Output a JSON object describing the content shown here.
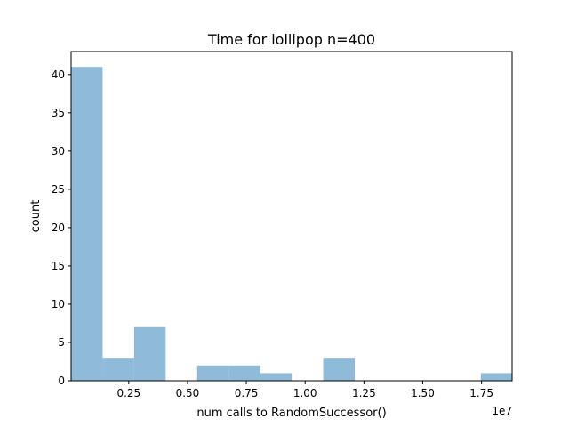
{
  "chart_data": {
    "type": "bar",
    "title": "Time for lollipop n=400",
    "xlabel": "num calls to RandomSuccessor()",
    "ylabel": "count",
    "x_offset_label": "1e7",
    "x_scale": 10000000,
    "xlim": [
      50000,
      18800000
    ],
    "ylim": [
      0,
      43
    ],
    "grid": false,
    "bar_color": "#8fbbd9",
    "bins": [
      {
        "x0": 50000,
        "x1": 1390000,
        "count": 41
      },
      {
        "x0": 1390000,
        "x1": 2730000,
        "count": 3
      },
      {
        "x0": 2730000,
        "x1": 4070000,
        "count": 7
      },
      {
        "x0": 4070000,
        "x1": 5410000,
        "count": 0
      },
      {
        "x0": 5410000,
        "x1": 6750000,
        "count": 2
      },
      {
        "x0": 6750000,
        "x1": 8090000,
        "count": 2
      },
      {
        "x0": 8090000,
        "x1": 9430000,
        "count": 1
      },
      {
        "x0": 9430000,
        "x1": 10770000,
        "count": 0
      },
      {
        "x0": 10770000,
        "x1": 12110000,
        "count": 3
      },
      {
        "x0": 12110000,
        "x1": 13450000,
        "count": 0
      },
      {
        "x0": 13450000,
        "x1": 14790000,
        "count": 0
      },
      {
        "x0": 14790000,
        "x1": 16130000,
        "count": 0
      },
      {
        "x0": 16130000,
        "x1": 17470000,
        "count": 0
      },
      {
        "x0": 17470000,
        "x1": 18810000,
        "count": 1
      }
    ],
    "x_ticks": [
      {
        "value": 2500000,
        "label": "0.25"
      },
      {
        "value": 5000000,
        "label": "0.50"
      },
      {
        "value": 7500000,
        "label": "0.75"
      },
      {
        "value": 10000000,
        "label": "1.00"
      },
      {
        "value": 12500000,
        "label": "1.25"
      },
      {
        "value": 15000000,
        "label": "1.50"
      },
      {
        "value": 17500000,
        "label": "1.75"
      }
    ],
    "y_ticks": [
      {
        "value": 0,
        "label": "0"
      },
      {
        "value": 5,
        "label": "5"
      },
      {
        "value": 10,
        "label": "10"
      },
      {
        "value": 15,
        "label": "15"
      },
      {
        "value": 20,
        "label": "20"
      },
      {
        "value": 25,
        "label": "25"
      },
      {
        "value": 30,
        "label": "30"
      },
      {
        "value": 35,
        "label": "35"
      },
      {
        "value": 40,
        "label": "40"
      }
    ]
  }
}
